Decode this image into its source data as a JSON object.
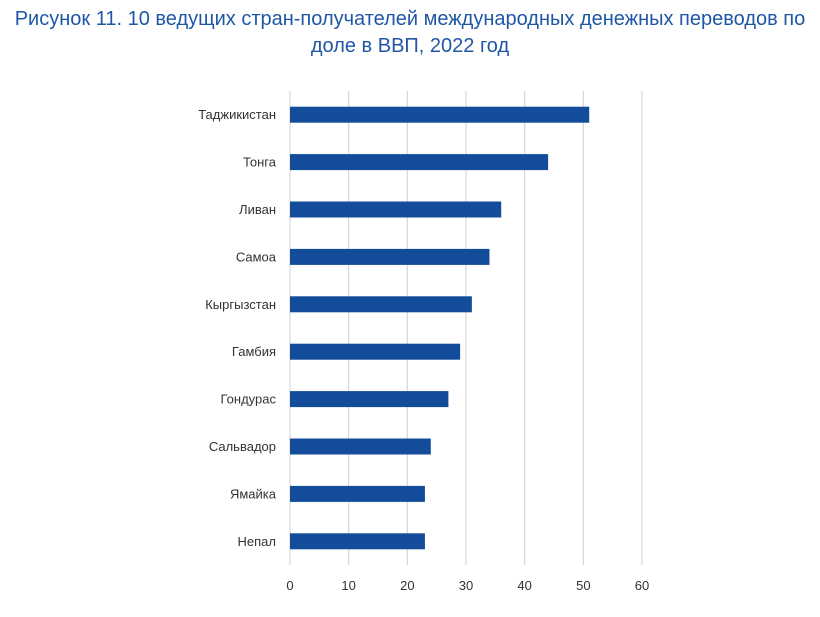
{
  "title_lines": [
    "Рисунок 11. 10 ведущих стран-получателей международных денежных переводов по",
    "доле в ВВП, 2022 год"
  ],
  "colors": {
    "bar": "#134c9a",
    "grid": "#d0d0d0",
    "title": "#1f57a6"
  },
  "chart_data": {
    "type": "bar",
    "orientation": "horizontal",
    "title": "Рисунок 11. 10 ведущих стран-получателей международных денежных переводов по доле в ВВП, 2022 год",
    "categories": [
      "Таджикистан",
      "Тонга",
      "Ливан",
      "Самоа",
      "Кыргызстан",
      "Гамбия",
      "Гондурас",
      "Сальвадор",
      "Ямайка",
      "Непал"
    ],
    "values": [
      51,
      44,
      36,
      34,
      31,
      29,
      27,
      24,
      23,
      23
    ],
    "xlim": [
      0,
      60
    ],
    "xticks": [
      0,
      10,
      20,
      30,
      40,
      50,
      60
    ],
    "xlabel": "",
    "ylabel": "",
    "grid": "vertical"
  }
}
